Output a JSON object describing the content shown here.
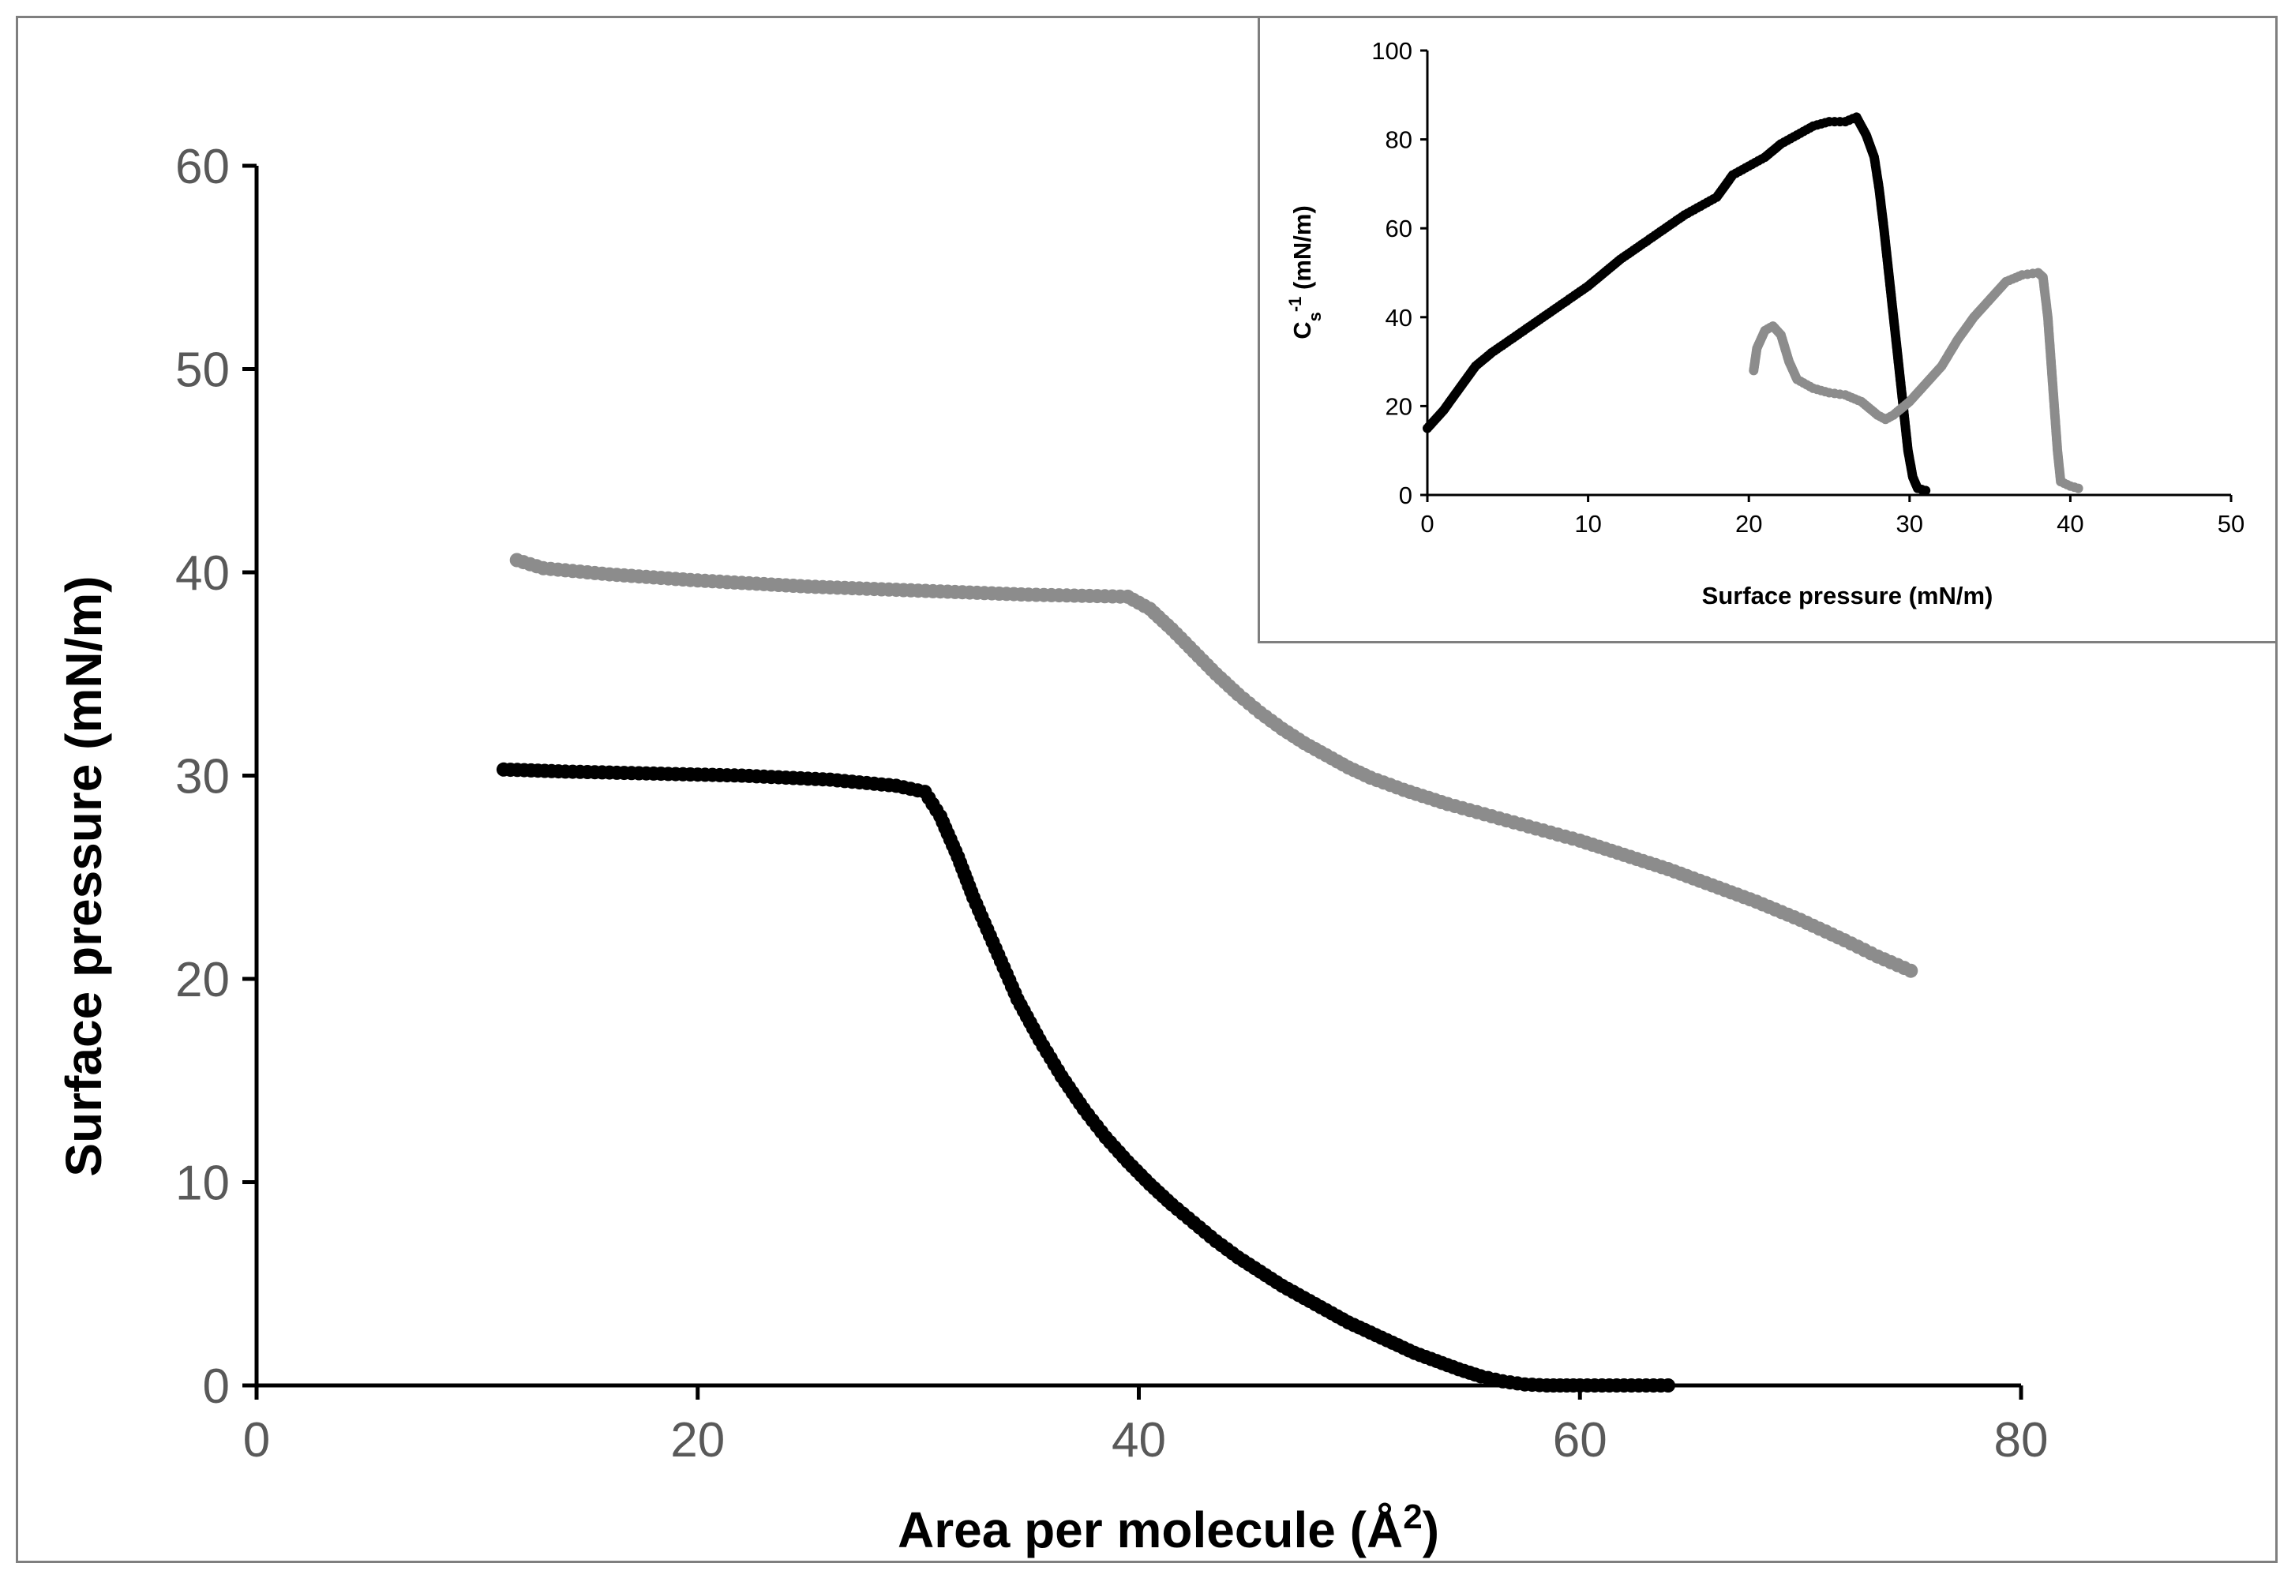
{
  "chart_data": [
    {
      "id": "main",
      "type": "scatter",
      "title": "",
      "xlabel": "Area per molecule (Å²)",
      "ylabel": "Surface pressure (mN/m)",
      "xlim": [
        0,
        80
      ],
      "ylim": [
        0,
        60
      ],
      "xticks": [
        0,
        20,
        40,
        60,
        80
      ],
      "yticks": [
        0,
        10,
        20,
        30,
        40,
        50,
        60
      ],
      "grid": false,
      "series": [
        {
          "name": "black",
          "color": "#000000",
          "points": [
            [
              11.2,
              30.3
            ],
            [
              14,
              30.2
            ],
            [
              18,
              30.1
            ],
            [
              22,
              30.0
            ],
            [
              26,
              29.8
            ],
            [
              29,
              29.5
            ],
            [
              30.3,
              29.2
            ],
            [
              31,
              28
            ],
            [
              31.8,
              26
            ],
            [
              32.5,
              24
            ],
            [
              33.5,
              21.5
            ],
            [
              34.5,
              19
            ],
            [
              35.5,
              17
            ],
            [
              36.5,
              15.2
            ],
            [
              37.5,
              13.6
            ],
            [
              38.5,
              12.2
            ],
            [
              39.5,
              11
            ],
            [
              40.5,
              9.9
            ],
            [
              41.5,
              8.9
            ],
            [
              42.5,
              8
            ],
            [
              43.5,
              7.1
            ],
            [
              44.5,
              6.3
            ],
            [
              45.5,
              5.6
            ],
            [
              46.5,
              4.9
            ],
            [
              47.5,
              4.3
            ],
            [
              48.5,
              3.7
            ],
            [
              49.5,
              3.1
            ],
            [
              50.5,
              2.6
            ],
            [
              51.5,
              2.1
            ],
            [
              52.5,
              1.6
            ],
            [
              53.5,
              1.2
            ],
            [
              54.5,
              0.8
            ],
            [
              55.5,
              0.45
            ],
            [
              56.5,
              0.2
            ],
            [
              57.5,
              0.05
            ],
            [
              58.5,
              0
            ],
            [
              60,
              0
            ],
            [
              62,
              0
            ],
            [
              64,
              0
            ]
          ]
        },
        {
          "name": "gray",
          "color": "#8c8c8c",
          "points": [
            [
              11.8,
              40.6
            ],
            [
              13,
              40.2
            ],
            [
              16,
              39.9
            ],
            [
              20,
              39.6
            ],
            [
              25,
              39.3
            ],
            [
              30,
              39.1
            ],
            [
              35,
              38.9
            ],
            [
              39.5,
              38.8
            ],
            [
              40.5,
              38.2
            ],
            [
              41.5,
              37.2
            ],
            [
              42.5,
              36.1
            ],
            [
              43.5,
              35.0
            ],
            [
              44.5,
              34.0
            ],
            [
              45.5,
              33.1
            ],
            [
              46.5,
              32.3
            ],
            [
              47.5,
              31.6
            ],
            [
              48.5,
              31.0
            ],
            [
              49.5,
              30.4
            ],
            [
              50.5,
              29.9
            ],
            [
              52,
              29.3
            ],
            [
              54,
              28.6
            ],
            [
              56,
              28.0
            ],
            [
              58,
              27.4
            ],
            [
              60,
              26.8
            ],
            [
              62,
              26.1
            ],
            [
              64,
              25.4
            ],
            [
              66,
              24.6
            ],
            [
              68,
              23.8
            ],
            [
              70,
              22.9
            ],
            [
              72,
              21.9
            ],
            [
              73.5,
              21.1
            ],
            [
              75,
              20.4
            ]
          ]
        }
      ]
    },
    {
      "id": "inset",
      "type": "scatter",
      "title": "",
      "xlabel": "Surface pressure (mN/m)",
      "ylabel": "C",
      "ylabel_sub": "s",
      "ylabel_sup": "-1",
      "ylabel_unit": " (mN/m)",
      "xlim": [
        0,
        50
      ],
      "ylim": [
        0,
        100
      ],
      "xticks": [
        0,
        10,
        20,
        30,
        40,
        50
      ],
      "yticks": [
        0,
        20,
        40,
        60,
        80,
        100
      ],
      "grid": false,
      "series": [
        {
          "name": "black",
          "color": "#000000",
          "points": [
            [
              0,
              15
            ],
            [
              1,
              19
            ],
            [
              2,
              24
            ],
            [
              3,
              29
            ],
            [
              4,
              32
            ],
            [
              6,
              37
            ],
            [
              8,
              42
            ],
            [
              10,
              47
            ],
            [
              12,
              53
            ],
            [
              14,
              58
            ],
            [
              16,
              63
            ],
            [
              18,
              67
            ],
            [
              19,
              72
            ],
            [
              20,
              74
            ],
            [
              21,
              76
            ],
            [
              22,
              79
            ],
            [
              23,
              81
            ],
            [
              24,
              83
            ],
            [
              25,
              84
            ],
            [
              26,
              84
            ],
            [
              26.7,
              85
            ],
            [
              27.3,
              81
            ],
            [
              27.8,
              76
            ],
            [
              28.1,
              69
            ],
            [
              28.4,
              60
            ],
            [
              28.7,
              50
            ],
            [
              29,
              40
            ],
            [
              29.3,
              30
            ],
            [
              29.6,
              20
            ],
            [
              29.9,
              10
            ],
            [
              30.2,
              4
            ],
            [
              30.5,
              1.5
            ],
            [
              31,
              1
            ]
          ]
        },
        {
          "name": "gray",
          "color": "#8c8c8c",
          "points": [
            [
              20.3,
              28
            ],
            [
              20.5,
              33
            ],
            [
              21,
              37
            ],
            [
              21.5,
              38
            ],
            [
              22,
              36
            ],
            [
              22.5,
              30
            ],
            [
              23,
              26
            ],
            [
              24,
              24
            ],
            [
              25,
              23
            ],
            [
              26,
              22.5
            ],
            [
              27,
              21
            ],
            [
              28,
              18
            ],
            [
              28.5,
              17
            ],
            [
              29,
              18
            ],
            [
              30,
              21
            ],
            [
              31,
              25
            ],
            [
              32,
              29
            ],
            [
              33,
              35
            ],
            [
              34,
              40
            ],
            [
              35,
              44
            ],
            [
              36,
              48
            ],
            [
              37,
              49.5
            ],
            [
              38,
              50
            ],
            [
              38.3,
              49
            ],
            [
              38.6,
              40
            ],
            [
              38.8,
              30
            ],
            [
              39,
              20
            ],
            [
              39.2,
              10
            ],
            [
              39.4,
              3
            ],
            [
              40,
              2
            ],
            [
              40.5,
              1.5
            ]
          ]
        }
      ]
    }
  ]
}
